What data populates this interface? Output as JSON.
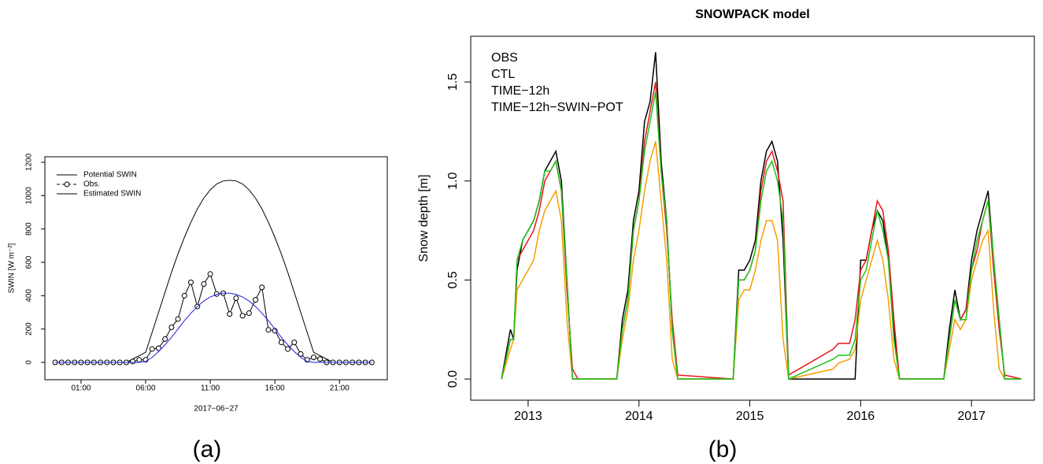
{
  "chart_data": [
    {
      "type": "line",
      "panel_label": "(a)",
      "xlabel": "2017−06−27",
      "ylabel": "SWIN [W m⁻²]",
      "x": [
        -1,
        -0.5,
        0,
        0.5,
        1,
        1.5,
        2,
        2.5,
        3,
        3.5,
        4,
        4.5,
        5,
        5.5,
        6,
        6.5,
        7,
        7.5,
        8,
        8.5,
        9,
        9.5,
        10,
        10.5,
        11,
        11.5,
        12,
        12.5,
        13,
        13.5,
        14,
        14.5,
        15,
        15.5,
        16,
        16.5,
        17,
        17.5,
        18,
        18.5,
        19,
        19.5,
        20,
        20.5,
        21,
        21.5,
        22,
        22.5,
        23,
        23.5
      ],
      "xlim": [
        -1.8,
        24.7
      ],
      "ylim": [
        -104,
        1233
      ],
      "xticks": [
        {
          "value": 1,
          "label": "01:00"
        },
        {
          "value": 6,
          "label": "06:00"
        },
        {
          "value": 11,
          "label": "11:00"
        },
        {
          "value": 16,
          "label": "16:00"
        },
        {
          "value": 21,
          "label": "21:00"
        }
      ],
      "yticks": [
        0,
        200,
        400,
        600,
        800,
        1000,
        1200
      ],
      "legend": "top-left",
      "series": [
        {
          "name": "Potential SWIN",
          "color": "#000000",
          "values": [
            0,
            0,
            0,
            0,
            0,
            0,
            0,
            0,
            0,
            0,
            0,
            0,
            20,
            40,
            60,
            180,
            300,
            420,
            540,
            650,
            750,
            840,
            920,
            985,
            1035,
            1070,
            1088,
            1092,
            1088,
            1070,
            1035,
            985,
            920,
            840,
            750,
            650,
            540,
            420,
            300,
            180,
            60,
            40,
            20,
            0,
            0,
            0,
            0,
            0,
            0,
            0
          ]
        },
        {
          "name": "Obs.",
          "color": "#000000",
          "marker": "circle",
          "values": [
            0,
            0,
            0,
            0,
            0,
            0,
            0,
            0,
            0,
            0,
            0,
            0,
            5,
            15,
            15,
            80,
            85,
            140,
            210,
            260,
            400,
            480,
            335,
            470,
            530,
            410,
            415,
            290,
            385,
            280,
            295,
            375,
            450,
            195,
            190,
            120,
            80,
            120,
            50,
            15,
            30,
            20,
            0,
            0,
            0,
            0,
            0,
            0,
            0,
            0
          ]
        },
        {
          "name": "Estimated SWIN",
          "color": "#1f1fe0",
          "values": [
            0,
            0,
            0,
            0,
            0,
            0,
            0,
            0,
            0,
            0,
            0,
            0,
            0,
            0,
            5,
            30,
            65,
            105,
            150,
            200,
            250,
            295,
            335,
            368,
            392,
            408,
            415,
            415,
            408,
            392,
            368,
            335,
            295,
            250,
            200,
            150,
            105,
            65,
            30,
            5,
            0,
            0,
            0,
            0,
            0,
            0,
            0,
            0,
            0,
            0
          ]
        }
      ]
    },
    {
      "type": "line",
      "panel_label": "(b)",
      "title": "SNOWPACK model",
      "ylabel": "Snow depth [m]",
      "x": [
        2012.76,
        2012.84,
        2012.87,
        2012.9,
        2012.95,
        2013.0,
        2013.05,
        2013.1,
        2013.15,
        2013.2,
        2013.25,
        2013.3,
        2013.35,
        2013.4,
        2013.45,
        2013.8,
        2013.85,
        2013.9,
        2013.95,
        2014.0,
        2014.05,
        2014.1,
        2014.15,
        2014.2,
        2014.25,
        2014.3,
        2014.35,
        2014.85,
        2014.9,
        2014.95,
        2015.0,
        2015.05,
        2015.1,
        2015.15,
        2015.2,
        2015.25,
        2015.3,
        2015.35,
        2015.75,
        2015.8,
        2015.9,
        2015.95,
        2016.0,
        2016.05,
        2016.1,
        2016.15,
        2016.2,
        2016.25,
        2016.3,
        2016.35,
        2016.75,
        2016.8,
        2016.85,
        2016.9,
        2016.95,
        2017.0,
        2017.05,
        2017.1,
        2017.15,
        2017.2,
        2017.25,
        2017.3,
        2017.45
      ],
      "xlim": [
        2012.482,
        2017.567
      ],
      "ylim": [
        -0.107,
        1.731
      ],
      "xticks": [
        2013,
        2014,
        2015,
        2016,
        2017
      ],
      "yticks": [
        {
          "value": 0,
          "label": "0.0"
        },
        0.5,
        {
          "value": 1,
          "label": "1.0"
        },
        1.5
      ],
      "legend": "top-left",
      "series": [
        {
          "name": "OBS",
          "color": "#000000",
          "values": [
            0,
            0.25,
            0.2,
            0.55,
            0.7,
            0.75,
            0.8,
            0.9,
            1.05,
            1.1,
            1.15,
            1.0,
            0.5,
            0,
            0,
            0,
            0.3,
            0.45,
            0.8,
            0.95,
            1.3,
            1.4,
            1.65,
            1.1,
            0.8,
            0.25,
            0,
            0,
            0.55,
            0.55,
            0.6,
            0.7,
            1.0,
            1.15,
            1.2,
            1.1,
            0.7,
            0,
            0,
            0,
            0,
            0,
            0.6,
            0.6,
            0.75,
            0.85,
            0.8,
            0.6,
            0.25,
            0,
            0,
            0.25,
            0.45,
            0.3,
            0.35,
            0.6,
            0.75,
            0.85,
            0.95,
            0.6,
            0.3,
            0,
            0
          ]
        },
        {
          "name": "CTL",
          "color": "#e8141c",
          "values": [
            0,
            0.2,
            0.2,
            0.6,
            0.65,
            0.7,
            0.75,
            0.85,
            1.0,
            1.05,
            1.1,
            0.95,
            0.45,
            0.05,
            0,
            0,
            0.25,
            0.4,
            0.75,
            0.9,
            1.2,
            1.35,
            1.5,
            1.05,
            0.75,
            0.3,
            0.02,
            0,
            0.5,
            0.5,
            0.55,
            0.65,
            0.95,
            1.1,
            1.15,
            1.05,
            0.9,
            0.02,
            0.15,
            0.18,
            0.18,
            0.3,
            0.55,
            0.6,
            0.75,
            0.9,
            0.85,
            0.65,
            0.3,
            0,
            0,
            0.2,
            0.4,
            0.3,
            0.35,
            0.55,
            0.65,
            0.8,
            0.9,
            0.55,
            0.25,
            0.02,
            0
          ]
        },
        {
          "name": "TIME−12h",
          "color": "#f5a000",
          "values": [
            0,
            0.15,
            0.2,
            0.45,
            0.5,
            0.55,
            0.6,
            0.75,
            0.85,
            0.9,
            0.95,
            0.8,
            0.3,
            0,
            0,
            0,
            0.2,
            0.35,
            0.6,
            0.75,
            0.95,
            1.1,
            1.2,
            0.9,
            0.6,
            0.1,
            0,
            0,
            0.4,
            0.45,
            0.45,
            0.55,
            0.7,
            0.8,
            0.8,
            0.7,
            0.2,
            0,
            0.05,
            0.08,
            0.1,
            0.15,
            0.4,
            0.5,
            0.6,
            0.7,
            0.6,
            0.4,
            0.1,
            0,
            0,
            0.15,
            0.3,
            0.25,
            0.3,
            0.5,
            0.6,
            0.7,
            0.75,
            0.35,
            0.05,
            0,
            0
          ]
        },
        {
          "name": "TIME−12h−SWIN−POT",
          "color": "#1cc31c",
          "values": [
            0,
            0.2,
            0.2,
            0.6,
            0.7,
            0.75,
            0.8,
            0.9,
            1.05,
            1.05,
            1.1,
            0.95,
            0.5,
            0,
            0,
            0,
            0.25,
            0.4,
            0.75,
            0.9,
            1.15,
            1.3,
            1.45,
            1.05,
            0.8,
            0.25,
            0,
            0,
            0.5,
            0.5,
            0.55,
            0.65,
            0.9,
            1.05,
            1.1,
            1.0,
            0.8,
            0,
            0.1,
            0.12,
            0.12,
            0.2,
            0.5,
            0.55,
            0.7,
            0.85,
            0.75,
            0.6,
            0.2,
            0,
            0,
            0.2,
            0.4,
            0.3,
            0.3,
            0.55,
            0.7,
            0.8,
            0.9,
            0.6,
            0.3,
            0,
            0
          ]
        }
      ]
    }
  ]
}
